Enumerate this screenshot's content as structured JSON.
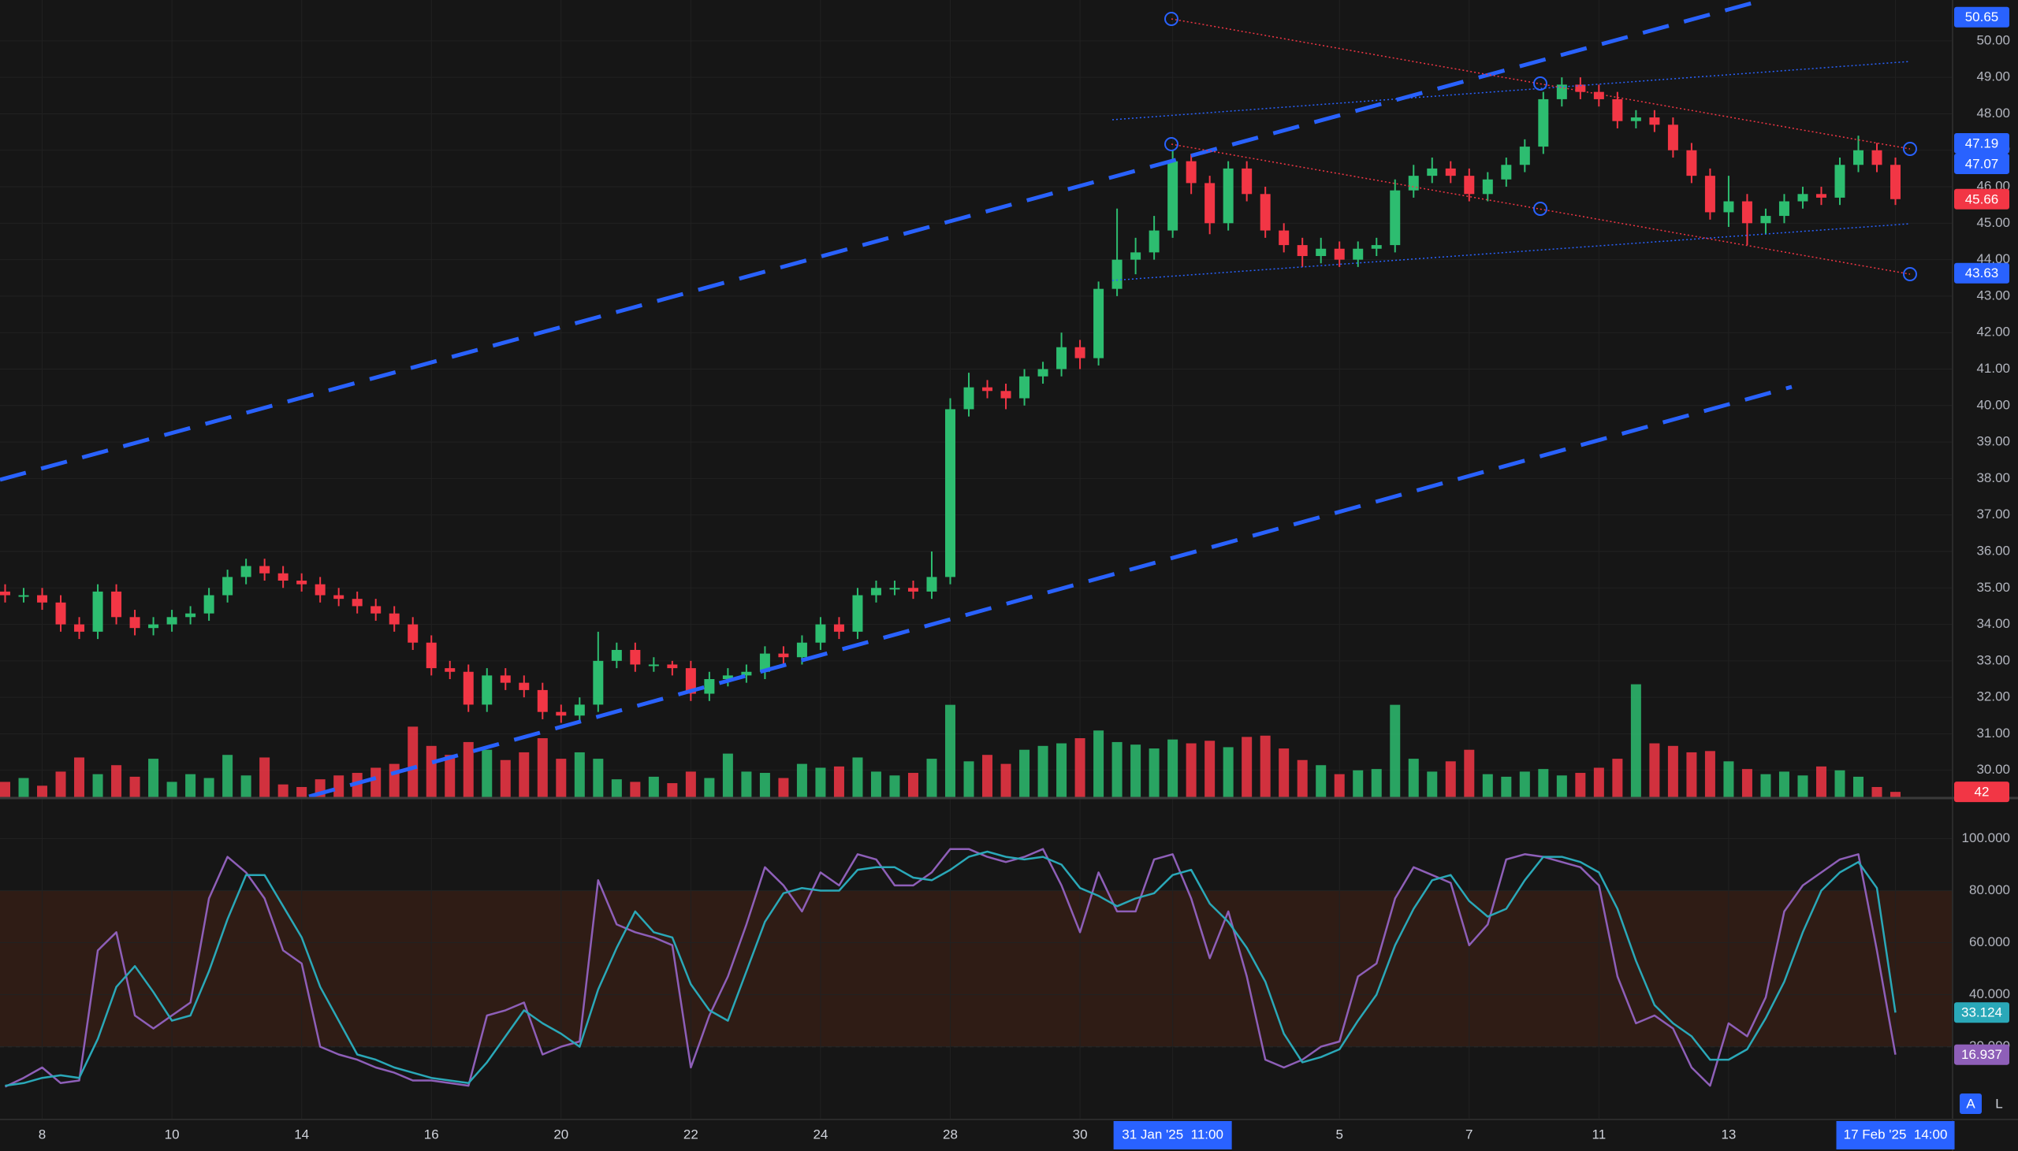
{
  "chart_data": [
    {
      "type": "candlestick",
      "categories": [
        null,
        null,
        "8",
        null,
        null,
        null,
        null,
        null,
        null,
        "10",
        null,
        null,
        null,
        null,
        null,
        null,
        "14",
        null,
        null,
        null,
        null,
        null,
        null,
        "16",
        null,
        null,
        null,
        null,
        null,
        null,
        "20",
        null,
        null,
        null,
        null,
        null,
        null,
        "22",
        null,
        null,
        null,
        null,
        null,
        null,
        "24",
        null,
        null,
        null,
        null,
        null,
        null,
        "28",
        null,
        null,
        null,
        null,
        null,
        null,
        "30",
        null,
        null,
        null,
        null,
        "31 Jan '25  11:00",
        null,
        null,
        null,
        null,
        null,
        null,
        null,
        null,
        "5",
        null,
        null,
        null,
        null,
        null,
        null,
        "7",
        null,
        null,
        null,
        null,
        null,
        null,
        "11",
        null,
        null,
        null,
        null,
        null,
        null,
        "13",
        null,
        null,
        null,
        null,
        null,
        null,
        null,
        null,
        "17 Feb '25  14:00"
      ],
      "open": [
        34.9,
        34.8,
        34.8,
        34.6,
        34.0,
        33.8,
        34.9,
        34.2,
        33.9,
        34.0,
        34.2,
        34.3,
        34.8,
        35.3,
        35.6,
        35.4,
        35.2,
        35.1,
        34.8,
        34.7,
        34.5,
        34.3,
        34.0,
        33.5,
        32.8,
        32.7,
        31.8,
        32.6,
        32.4,
        32.2,
        31.6,
        31.5,
        31.8,
        33.0,
        33.3,
        32.9,
        32.9,
        32.8,
        32.1,
        32.5,
        32.6,
        32.7,
        33.2,
        33.1,
        33.5,
        34.0,
        33.8,
        34.8,
        35.0,
        35.0,
        34.9,
        35.3,
        39.9,
        40.5,
        40.4,
        40.2,
        40.8,
        41.0,
        41.6,
        41.3,
        43.2,
        44.0,
        44.2,
        44.8,
        46.7,
        46.1,
        45.0,
        46.5,
        45.8,
        44.8,
        44.4,
        44.1,
        44.3,
        44.0,
        44.3,
        44.4,
        45.9,
        46.3,
        46.5,
        46.3,
        45.8,
        46.2,
        46.6,
        47.1,
        48.4,
        48.8,
        48.6,
        48.4,
        47.8,
        47.9,
        47.7,
        47.0,
        46.3,
        45.3,
        45.6,
        45.0,
        45.2,
        45.6,
        45.8,
        45.7,
        46.6,
        47.0,
        46.6
      ],
      "high": [
        35.1,
        35.0,
        35.0,
        34.8,
        34.2,
        35.1,
        35.1,
        34.4,
        34.2,
        34.4,
        34.5,
        35.0,
        35.5,
        35.8,
        35.8,
        35.6,
        35.4,
        35.3,
        35.0,
        34.9,
        34.7,
        34.5,
        34.2,
        33.7,
        33.0,
        32.9,
        32.8,
        32.8,
        32.6,
        32.4,
        31.8,
        32.0,
        33.8,
        33.5,
        33.5,
        33.1,
        33.0,
        33.0,
        32.7,
        32.8,
        32.9,
        33.4,
        33.4,
        33.7,
        34.2,
        34.2,
        35.0,
        35.2,
        35.2,
        35.2,
        36.0,
        40.2,
        40.9,
        40.7,
        40.6,
        41.0,
        41.2,
        42.0,
        41.8,
        43.4,
        45.4,
        44.6,
        45.2,
        47.0,
        46.9,
        46.3,
        46.7,
        46.7,
        46.0,
        45.0,
        44.6,
        44.6,
        44.5,
        44.5,
        44.6,
        46.2,
        46.6,
        46.8,
        46.7,
        46.5,
        46.4,
        46.8,
        47.3,
        48.6,
        49.0,
        49.0,
        48.8,
        48.6,
        48.1,
        48.1,
        47.9,
        47.2,
        46.5,
        46.3,
        45.8,
        45.4,
        45.8,
        46.0,
        46.0,
        46.8,
        47.4,
        47.2,
        46.8
      ],
      "low": [
        34.6,
        34.6,
        34.4,
        33.8,
        33.6,
        33.6,
        34.0,
        33.7,
        33.7,
        33.8,
        34.0,
        34.1,
        34.6,
        35.1,
        35.2,
        35.0,
        34.9,
        34.6,
        34.5,
        34.3,
        34.1,
        33.8,
        33.3,
        32.6,
        32.5,
        31.6,
        31.6,
        32.2,
        32.0,
        31.4,
        31.3,
        31.3,
        31.6,
        32.8,
        32.7,
        32.7,
        32.6,
        31.9,
        31.9,
        32.3,
        32.4,
        32.5,
        32.9,
        32.9,
        33.3,
        33.6,
        33.6,
        34.6,
        34.8,
        34.7,
        34.7,
        35.1,
        39.7,
        40.2,
        39.9,
        40.0,
        40.6,
        40.8,
        41.0,
        41.1,
        43.0,
        43.6,
        44.0,
        44.6,
        45.8,
        44.7,
        44.8,
        45.6,
        44.6,
        44.2,
        43.8,
        43.9,
        43.8,
        43.8,
        44.1,
        44.2,
        45.7,
        46.1,
        46.1,
        45.6,
        45.6,
        46.0,
        46.4,
        46.9,
        48.2,
        48.4,
        48.2,
        47.6,
        47.6,
        47.5,
        46.8,
        46.1,
        45.1,
        44.9,
        44.4,
        44.7,
        45.0,
        45.4,
        45.5,
        45.5,
        46.4,
        46.4,
        45.5
      ],
      "close": [
        34.8,
        34.8,
        34.6,
        34.0,
        33.8,
        34.9,
        34.2,
        33.9,
        34.0,
        34.2,
        34.3,
        34.8,
        35.3,
        35.6,
        35.4,
        35.2,
        35.1,
        34.8,
        34.7,
        34.5,
        34.3,
        34.0,
        33.5,
        32.8,
        32.7,
        31.8,
        32.6,
        32.4,
        32.2,
        31.6,
        31.5,
        31.8,
        33.0,
        33.3,
        32.9,
        32.9,
        32.8,
        32.1,
        32.5,
        32.6,
        32.7,
        33.2,
        33.1,
        33.5,
        34.0,
        33.8,
        34.8,
        35.0,
        35.0,
        34.9,
        35.3,
        39.9,
        40.5,
        40.4,
        40.2,
        40.8,
        41.0,
        41.6,
        41.3,
        43.2,
        44.0,
        44.2,
        44.8,
        46.7,
        46.1,
        45.0,
        46.5,
        45.8,
        44.8,
        44.4,
        44.1,
        44.3,
        44.0,
        44.3,
        44.4,
        45.9,
        46.3,
        46.5,
        46.3,
        45.8,
        46.2,
        46.6,
        47.1,
        48.4,
        48.8,
        48.6,
        48.4,
        47.8,
        47.9,
        47.7,
        47.0,
        46.3,
        45.3,
        45.6,
        45.0,
        45.2,
        45.6,
        45.8,
        45.7,
        46.6,
        47.0,
        46.6,
        45.66
      ],
      "volume": [
        120,
        150,
        90,
        200,
        310,
        180,
        250,
        160,
        300,
        120,
        180,
        150,
        330,
        170,
        310,
        100,
        80,
        140,
        170,
        190,
        230,
        260,
        550,
        400,
        330,
        430,
        370,
        290,
        350,
        460,
        300,
        350,
        300,
        140,
        120,
        160,
        110,
        200,
        150,
        340,
        200,
        190,
        150,
        260,
        230,
        240,
        310,
        200,
        170,
        190,
        300,
        720,
        280,
        330,
        260,
        370,
        400,
        420,
        460,
        520,
        430,
        410,
        380,
        450,
        420,
        440,
        390,
        470,
        480,
        380,
        290,
        250,
        180,
        210,
        220,
        720,
        300,
        200,
        280,
        370,
        180,
        160,
        200,
        220,
        170,
        190,
        230,
        300,
        880,
        420,
        400,
        350,
        360,
        280,
        220,
        180,
        200,
        170,
        240,
        210,
        160,
        80,
        42
      ],
      "up_color": "#2dbd70",
      "down_color": "#f23645",
      "ylim": [
        29.26,
        51.12
      ],
      "volume_ylim": [
        0,
        1000
      ],
      "yticks": [
        {
          "value": 30,
          "label": "30.00"
        },
        {
          "value": 31,
          "label": "31.00"
        },
        {
          "value": 32,
          "label": "32.00"
        },
        {
          "value": 33,
          "label": "33.00"
        },
        {
          "value": 34,
          "label": "34.00"
        },
        {
          "value": 35,
          "label": "35.00"
        },
        {
          "value": 36,
          "label": "36.00"
        },
        {
          "value": 37,
          "label": "37.00"
        },
        {
          "value": 38,
          "label": "38.00"
        },
        {
          "value": 39,
          "label": "39.00"
        },
        {
          "value": 40,
          "label": "40.00"
        },
        {
          "value": 41,
          "label": "41.00"
        },
        {
          "value": 42,
          "label": "42.00"
        },
        {
          "value": 43,
          "label": "43.00"
        },
        {
          "value": 44,
          "label": "44.00"
        },
        {
          "value": 45,
          "label": "45.00"
        },
        {
          "value": 46,
          "label": "46.00"
        },
        {
          "value": 47,
          "label": "47.00"
        },
        {
          "value": 48,
          "label": "48.00"
        },
        {
          "value": 49,
          "label": "49.00"
        },
        {
          "value": 50,
          "label": "50.00"
        }
      ],
      "price_tags": [
        {
          "value": 50.65,
          "color": "#2962ff"
        },
        {
          "value": 47.19,
          "color": "#2962ff"
        },
        {
          "value": 47.07,
          "color": "#2962ff"
        },
        {
          "value": 43.63,
          "color": "#2962ff"
        }
      ],
      "grid": true
    },
    {
      "type": "line",
      "series": [
        {
          "color": "#8e5fb8",
          "values": [
            4.6,
            8,
            12,
            6,
            7,
            57,
            64,
            32,
            27,
            32,
            37,
            77,
            93,
            87,
            77,
            57,
            52,
            20,
            17,
            15,
            12,
            10,
            7,
            7,
            6,
            5,
            32,
            34,
            37,
            17,
            20,
            22,
            84,
            67,
            64,
            62,
            59,
            12,
            32,
            47,
            67,
            89,
            82,
            72,
            87,
            82,
            94,
            92,
            82,
            82,
            87,
            96,
            96,
            93,
            91,
            93,
            96,
            82,
            64,
            87,
            72,
            72,
            92,
            94,
            77,
            54,
            72,
            47,
            15,
            12,
            15,
            20,
            22,
            47,
            52,
            77,
            89,
            86,
            83,
            59,
            67,
            92,
            94,
            93,
            91,
            89,
            82,
            47,
            29,
            32,
            27,
            12,
            5,
            29,
            24,
            39,
            72,
            82,
            87,
            92,
            94,
            57,
            16.937
          ]
        },
        {
          "color": "#2aa8b8",
          "values": [
            5,
            6,
            8,
            9,
            8,
            23,
            43,
            51,
            41,
            30,
            32,
            49,
            69,
            86,
            86,
            74,
            62,
            43,
            30,
            17,
            15,
            12,
            10,
            8,
            7,
            6,
            14,
            24,
            34,
            29,
            25,
            20,
            42,
            58,
            72,
            64,
            62,
            44,
            34,
            30,
            49,
            68,
            79,
            81,
            80,
            80,
            88,
            89,
            89,
            85,
            84,
            88,
            93,
            95,
            93,
            92,
            93,
            90,
            81,
            78,
            74,
            77,
            79,
            86,
            88,
            75,
            68,
            58,
            45,
            25,
            14,
            16,
            19,
            30,
            40,
            59,
            73,
            84,
            86,
            76,
            70,
            73,
            84,
            93,
            93,
            91,
            87,
            73,
            53,
            36,
            29,
            24,
            15,
            15,
            19,
            31,
            45,
            64,
            80,
            87,
            91,
            81,
            33.124
          ]
        }
      ],
      "ylim": [
        -8,
        115
      ],
      "yticks": [
        {
          "value": 20,
          "label": "20.000"
        },
        {
          "value": 40,
          "label": "40.000"
        },
        {
          "value": 60,
          "label": "60.000"
        },
        {
          "value": 80,
          "label": "80.000"
        },
        {
          "value": 100,
          "label": "100.000"
        }
      ],
      "band": [
        20,
        80
      ],
      "band_color": "#2f1c15",
      "grid": true
    }
  ],
  "buttons": [
    "A",
    "L"
  ]
}
